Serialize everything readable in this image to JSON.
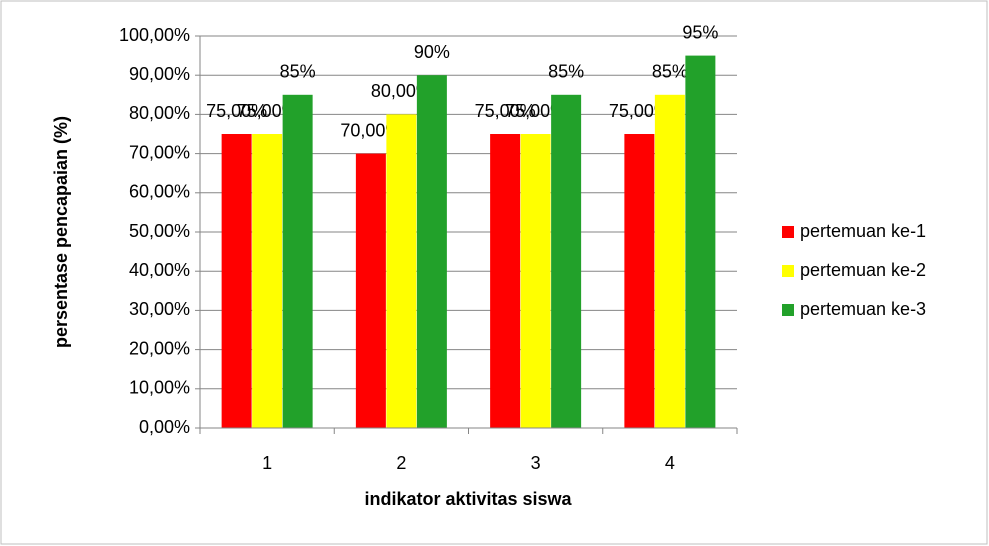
{
  "chart_data": {
    "type": "bar",
    "x_label": "indikator aktivitas siswa",
    "y_label": "persentase pencapaian (%)",
    "categories": [
      "1",
      "2",
      "3",
      "4"
    ],
    "series": [
      {
        "name": "pertemuan ke-1",
        "color": "#ff0000",
        "values": [
          75,
          70,
          75,
          75
        ],
        "value_labels": [
          "75,00%",
          "70,00%",
          "75,00%",
          "75,00%"
        ]
      },
      {
        "name": "pertemuan ke-2",
        "color": "#ffff00",
        "values": [
          75,
          80,
          75,
          85
        ],
        "value_labels": [
          "75,00%",
          "80,00%",
          "75,00%",
          "85%"
        ]
      },
      {
        "name": "pertemuan ke-3",
        "color": "#22a12a",
        "values": [
          85,
          90,
          85,
          95
        ],
        "value_labels": [
          "85%",
          "90%",
          "85%",
          "95%"
        ]
      }
    ],
    "ylim": [
      0,
      100
    ],
    "yticks": [
      {
        "value": 0,
        "label": "0,00%"
      },
      {
        "value": 10,
        "label": "10,00%"
      },
      {
        "value": 20,
        "label": "20,00%"
      },
      {
        "value": 30,
        "label": "30,00%"
      },
      {
        "value": 40,
        "label": "40,00%"
      },
      {
        "value": 50,
        "label": "50,00%"
      },
      {
        "value": 60,
        "label": "60,00%"
      },
      {
        "value": 70,
        "label": "70,00%"
      },
      {
        "value": 80,
        "label": "80,00%"
      },
      {
        "value": 90,
        "label": "90,00%"
      },
      {
        "value": 100,
        "label": "100,00%"
      }
    ],
    "grid": true,
    "legend": "right"
  }
}
